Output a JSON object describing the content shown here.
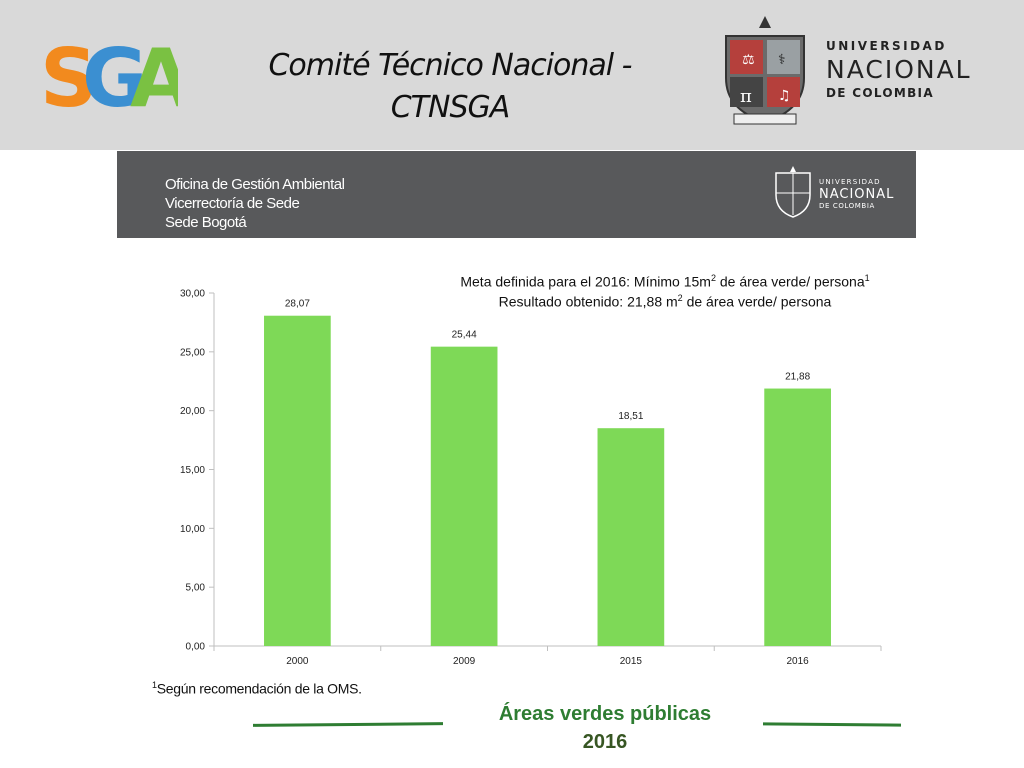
{
  "header": {
    "logo_text": "SGA",
    "title_line1": "Comité Técnico Nacional -",
    "title_line2": "CTNSGA",
    "university": {
      "line1": "UNIVERSIDAD",
      "line2": "NACIONAL",
      "line3": "DE COLOMBIA"
    }
  },
  "office_band": {
    "line1": "Oficina de Gestión Ambiental",
    "line2": "Vicerrectoría de Sede",
    "line3": "Sede Bogotá",
    "university": {
      "line1": "UNIVERSIDAD",
      "line2": "NACIONAL",
      "line3": "DE COLOMBIA"
    }
  },
  "annotation": {
    "line1_before_sup": "Meta definida para el 2016: Mínimo 15m",
    "line1_sup": "2",
    "line1_after_sup": " de área verde/ persona",
    "line1_note_sup": "1",
    "line2_before_sup": "Resultado obtenido: 21,88 m",
    "line2_sup": "2",
    "line2_after_sup": " de área verde/ persona"
  },
  "footnote": {
    "marker": "1",
    "text": "Según recomendación de la OMS."
  },
  "bottom_title": {
    "line1": "Áreas verdes públicas",
    "line2": "2016"
  },
  "colors": {
    "bar": "#7ed957",
    "accent_green": "#2e7d32",
    "office_band": "#58595b",
    "top_band": "#d9d9d9"
  },
  "chart_data": {
    "type": "bar",
    "categories": [
      "2000",
      "2009",
      "2015",
      "2016"
    ],
    "values": [
      28.07,
      25.44,
      18.51,
      21.88
    ],
    "value_labels": [
      "28,07",
      "25,44",
      "18,51",
      "21,88"
    ],
    "yticks": [
      "0,00",
      "5,00",
      "10,00",
      "15,00",
      "20,00",
      "25,00",
      "30,00"
    ],
    "ylim": [
      0,
      30
    ],
    "title": "",
    "xlabel": "",
    "ylabel": "",
    "grid": false,
    "legend": "none"
  }
}
